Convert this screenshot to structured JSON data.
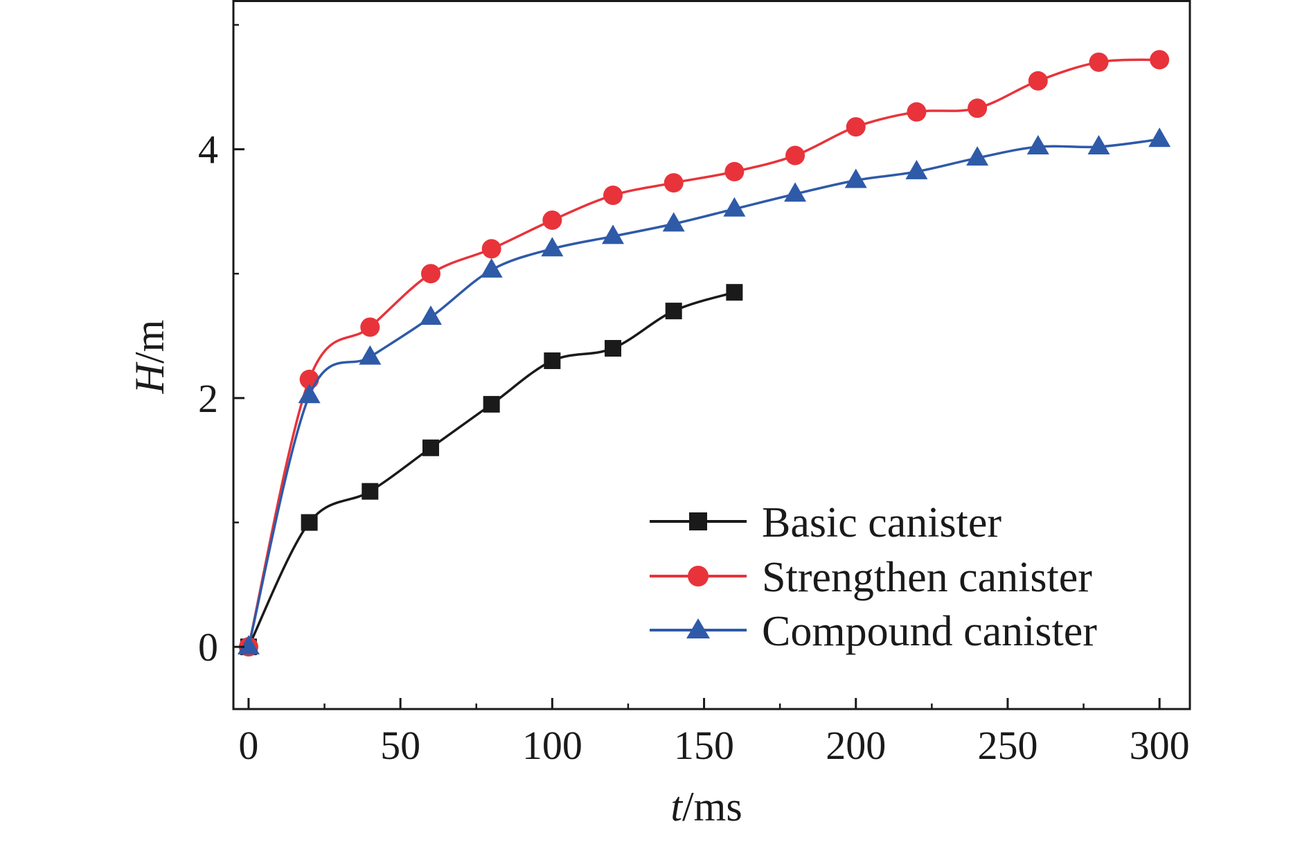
{
  "chart_data": {
    "type": "line",
    "xlabel_italic": "t",
    "xlabel_rest": "/ms",
    "ylabel_italic": "H",
    "ylabel_rest": "/m",
    "xlim": [
      -5,
      310
    ],
    "ylim": [
      -0.5,
      5.2
    ],
    "xticks": [
      0,
      50,
      100,
      150,
      200,
      250,
      300
    ],
    "yticks": [
      0,
      2,
      4
    ],
    "grid": false,
    "legend_position": "bottom-right",
    "series": [
      {
        "name": "Basic canister",
        "color": "#1a1a1a",
        "marker": "square",
        "x": [
          0,
          20,
          40,
          60,
          80,
          100,
          120,
          140,
          160
        ],
        "y": [
          0,
          1.0,
          1.25,
          1.6,
          1.95,
          2.3,
          2.4,
          2.7,
          2.85
        ]
      },
      {
        "name": "Strengthen canister",
        "color": "#e8333b",
        "marker": "circle",
        "x": [
          0,
          20,
          40,
          60,
          80,
          100,
          120,
          140,
          160,
          180,
          200,
          220,
          240,
          260,
          280,
          300
        ],
        "y": [
          0,
          2.15,
          2.57,
          3.0,
          3.2,
          3.43,
          3.63,
          3.73,
          3.82,
          3.95,
          4.18,
          4.3,
          4.33,
          4.55,
          4.7,
          4.72
        ]
      },
      {
        "name": "Compound canister",
        "color": "#2e5aa8",
        "marker": "triangle",
        "x": [
          0,
          20,
          40,
          60,
          80,
          100,
          120,
          140,
          160,
          180,
          200,
          220,
          240,
          260,
          280,
          300
        ],
        "y": [
          0,
          2.02,
          2.33,
          2.65,
          3.03,
          3.2,
          3.3,
          3.4,
          3.52,
          3.64,
          3.75,
          3.82,
          3.93,
          4.02,
          4.02,
          4.08
        ]
      }
    ]
  }
}
